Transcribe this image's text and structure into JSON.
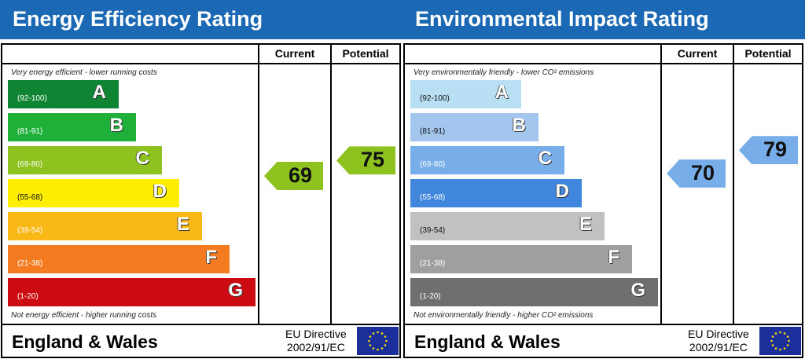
{
  "chart_data": [
    {
      "type": "bar",
      "title": "Energy Efficiency Rating",
      "columns": [
        "Current",
        "Potential"
      ],
      "top_note": "Very energy efficient - lower running costs",
      "bottom_note": "Not energy efficient - higher running costs",
      "bands": [
        {
          "letter": "A",
          "range": "(92-100)",
          "color": "#0f8534"
        },
        {
          "letter": "B",
          "range": "(81-91)",
          "color": "#1fb03a"
        },
        {
          "letter": "C",
          "range": "(69-80)",
          "color": "#8dc21f"
        },
        {
          "letter": "D",
          "range": "(55-68)",
          "color": "#ffee00"
        },
        {
          "letter": "E",
          "range": "(39-54)",
          "color": "#fab817"
        },
        {
          "letter": "F",
          "range": "(21-38)",
          "color": "#f47b20"
        },
        {
          "letter": "G",
          "range": "(1-20)",
          "color": "#cc0a12"
        }
      ],
      "current": {
        "value": 69,
        "color": "#8dc21f"
      },
      "potential": {
        "value": 75,
        "color": "#8dc21f"
      },
      "footer": "England & Wales",
      "directive": [
        "EU Directive",
        "2002/91/EC"
      ]
    },
    {
      "type": "bar",
      "title": "Environmental Impact Rating",
      "columns": [
        "Current",
        "Potential"
      ],
      "top_note": "Very environmentally friendly - lower CO² emissions",
      "bottom_note": "Not environmentally friendly - higher CO² emissions",
      "bands": [
        {
          "letter": "A",
          "range": "(92-100)",
          "color": "#b9dff5"
        },
        {
          "letter": "B",
          "range": "(81-91)",
          "color": "#a3c6ee"
        },
        {
          "letter": "C",
          "range": "(69-80)",
          "color": "#77ade8"
        },
        {
          "letter": "D",
          "range": "(55-68)",
          "color": "#3f86dc"
        },
        {
          "letter": "E",
          "range": "(39-54)",
          "color": "#c1c0c2"
        },
        {
          "letter": "F",
          "range": "(21-38)",
          "color": "#a09ea0"
        },
        {
          "letter": "G",
          "range": "(1-20)",
          "color": "#6f6e70"
        }
      ],
      "current": {
        "value": 70,
        "color": "#77ade8"
      },
      "potential": {
        "value": 79,
        "color": "#77ade8"
      },
      "footer": "England & Wales",
      "directive": [
        "EU Directive",
        "2002/91/EC"
      ]
    }
  ]
}
